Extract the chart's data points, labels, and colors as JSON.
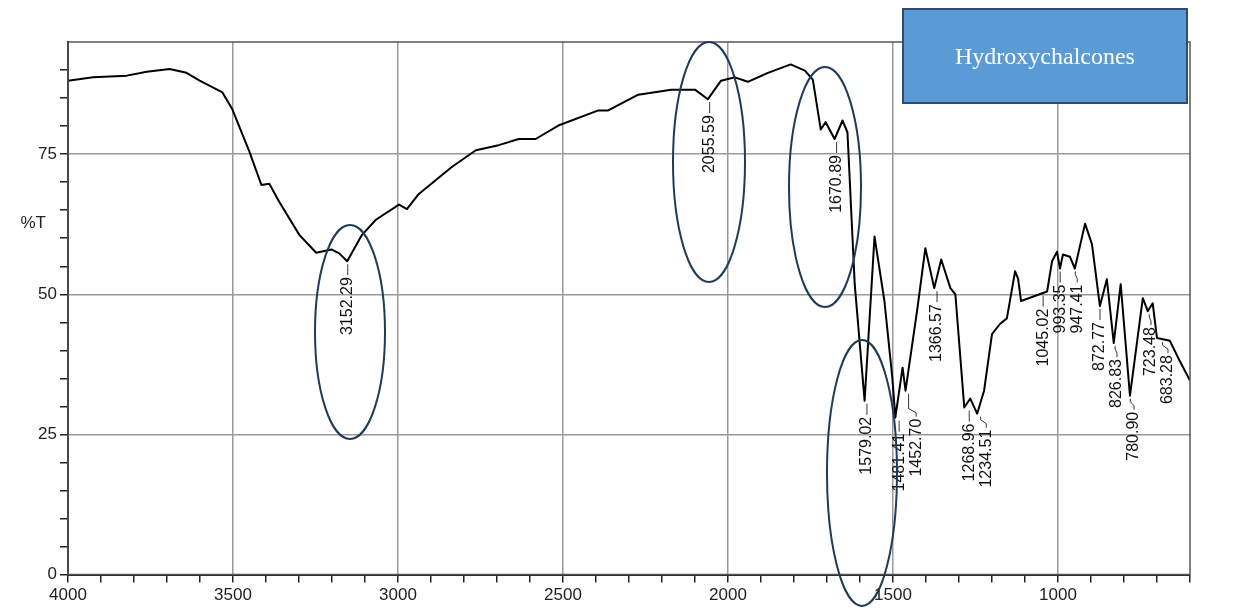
{
  "chart_data": {
    "type": "line",
    "title": "Hydroxychalcones",
    "ylabel": "%T",
    "xlim": [
      4000,
      600
    ],
    "ylim": [
      0,
      95
    ],
    "xticks": [
      4000,
      {
        "value": 3900,
        "label": null
      },
      {
        "value": 3800,
        "label": null
      },
      {
        "value": 3700,
        "label": null
      },
      {
        "value": 3600,
        "label": null
      },
      3500,
      {
        "value": 3400,
        "label": null
      },
      {
        "value": 3300,
        "label": null
      },
      {
        "value": 3200,
        "label": null
      },
      {
        "value": 3100,
        "label": null
      },
      3000,
      {
        "value": 2900,
        "label": null
      },
      {
        "value": 2800,
        "label": null
      },
      {
        "value": 2700,
        "label": null
      },
      {
        "value": 2600,
        "label": null
      },
      2500,
      {
        "value": 2400,
        "label": null
      },
      {
        "value": 2300,
        "label": null
      },
      {
        "value": 2200,
        "label": null
      },
      {
        "value": 2100,
        "label": null
      },
      2000,
      {
        "value": 1900,
        "label": null
      },
      {
        "value": 1800,
        "label": null
      },
      {
        "value": 1700,
        "label": null
      },
      {
        "value": 1600,
        "label": null
      },
      1500,
      {
        "value": 1400,
        "label": null
      },
      {
        "value": 1300,
        "label": null
      },
      {
        "value": 1200,
        "label": null
      },
      {
        "value": 1100,
        "label": null
      },
      1000,
      {
        "value": 900,
        "label": null
      },
      {
        "value": 800,
        "label": null
      },
      {
        "value": 700,
        "label": null
      },
      {
        "value": 600,
        "label": null
      }
    ],
    "yticks": [
      0,
      {
        "value": 5,
        "label": null
      },
      {
        "value": 10,
        "label": null
      },
      {
        "value": 15,
        "label": null
      },
      {
        "value": 20,
        "label": null
      },
      25,
      {
        "value": 30,
        "label": null
      },
      {
        "value": 35,
        "label": null
      },
      {
        "value": 40,
        "label": null
      },
      {
        "value": 45,
        "label": null
      },
      50,
      {
        "value": 55,
        "label": null
      },
      {
        "value": 60,
        "label": null
      },
      {
        "value": 65,
        "label": null
      },
      {
        "value": 70,
        "label": null
      },
      75,
      {
        "value": 80,
        "label": null
      },
      {
        "value": 85,
        "label": null
      },
      {
        "value": 90,
        "label": null
      }
    ],
    "grid": true,
    "marker": "none",
    "line_style": "solid",
    "series": [
      {
        "color": "#000000",
        "x": [
          4000,
          3924,
          3822,
          3761,
          3692,
          3641,
          3601,
          3532,
          3502,
          3450,
          3414,
          3390,
          3360,
          3299,
          3248,
          3202,
          3178,
          3154,
          3109,
          3067,
          2997,
          2973,
          2937,
          2837,
          2764,
          2695,
          2634,
          2583,
          2514,
          2393,
          2363,
          2272,
          2172,
          2100,
          2061,
          2021,
          1979,
          1940,
          1879,
          1810,
          1767,
          1743,
          1719,
          1704,
          1677,
          1653,
          1638,
          1616,
          1586,
          1556,
          1526,
          1502,
          1493,
          1471,
          1462,
          1426,
          1402,
          1375,
          1354,
          1326,
          1311,
          1284,
          1266,
          1245,
          1224,
          1200,
          1176,
          1155,
          1130,
          1121,
          1112,
          1033,
          1018,
          1003,
          994,
          985,
          964,
          949,
          918,
          897,
          873,
          852,
          831,
          810,
          782,
          743,
          728,
          713,
          700,
          661,
          631,
          600
        ],
        "values": [
          88.1,
          88.7,
          89.0,
          89.7,
          90.2,
          89.5,
          88.1,
          86.0,
          83.0,
          75.4,
          69.5,
          69.7,
          66.5,
          60.6,
          57.4,
          58.0,
          57.3,
          55.9,
          60.6,
          63.3,
          66.0,
          65.2,
          67.9,
          72.7,
          75.7,
          76.6,
          77.7,
          77.7,
          80.1,
          82.8,
          82.8,
          85.6,
          86.5,
          86.5,
          84.8,
          88.1,
          88.7,
          87.9,
          89.5,
          91.0,
          89.9,
          88.3,
          79.4,
          80.7,
          77.7,
          81.0,
          78.9,
          51.8,
          31.0,
          60.3,
          48.8,
          35.1,
          28.0,
          36.9,
          32.8,
          47.5,
          58.2,
          51.1,
          56.2,
          51.1,
          50.0,
          29.8,
          31.4,
          28.7,
          32.8,
          42.9,
          44.7,
          45.7,
          54.1,
          52.8,
          48.8,
          50.5,
          55.9,
          57.6,
          54.6,
          57.1,
          56.7,
          54.6,
          62.6,
          58.9,
          47.9,
          52.7,
          41.3,
          51.8,
          31.9,
          49.3,
          47.0,
          48.4,
          42.2,
          41.7,
          38.1,
          34.6
        ]
      }
    ],
    "annotations": [
      {
        "text": "3152.29",
        "x": 3152.29,
        "y": 55.9
      },
      {
        "text": "2055.59",
        "x": 2055.59,
        "y": 84.8
      },
      {
        "text": "1670.89",
        "x": 1670.89,
        "y": 77.7
      },
      {
        "text": "1579.02",
        "x": 1579.02,
        "y": 31.0
      },
      {
        "text": "1481.41",
        "x": 1481.41,
        "y": 28.0
      },
      {
        "text": "1452.70",
        "x": 1452.7,
        "y": 32.8
      },
      {
        "text": "1366.57",
        "x": 1366.57,
        "y": 51.1
      },
      {
        "text": "1268.96",
        "x": 1268.96,
        "y": 29.8
      },
      {
        "text": "1234.51",
        "x": 1234.51,
        "y": 28.7
      },
      {
        "text": "1045.02",
        "x": 1045.02,
        "y": 50.3
      },
      {
        "text": "993.35",
        "x": 993.35,
        "y": 54.6
      },
      {
        "text": "947.41",
        "x": 947.41,
        "y": 54.6
      },
      {
        "text": "872.77",
        "x": 872.77,
        "y": 47.9
      },
      {
        "text": "826.83",
        "x": 826.83,
        "y": 41.3
      },
      {
        "text": "780.90",
        "x": 780.9,
        "y": 31.9
      },
      {
        "text": "723.48",
        "x": 723.48,
        "y": 47.0
      },
      {
        "text": "683.28",
        "x": 683.28,
        "y": 42.0
      }
    ]
  }
}
